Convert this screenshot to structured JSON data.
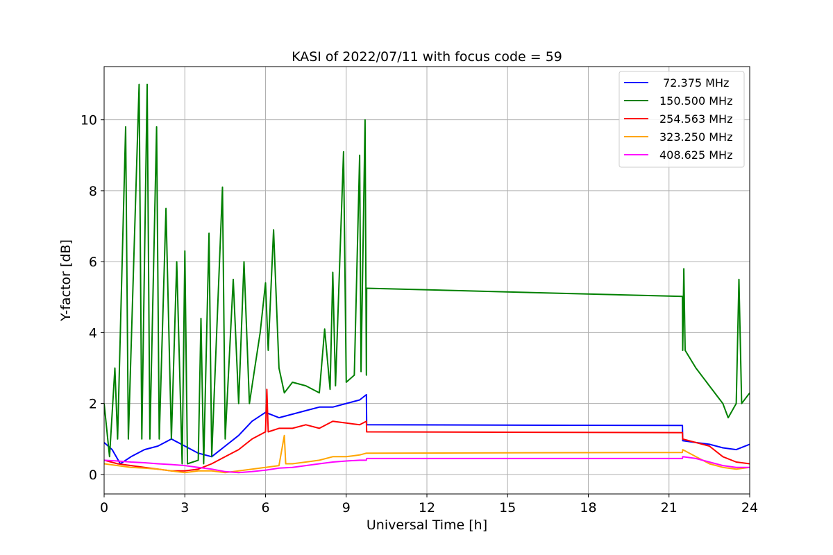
{
  "chart_data": {
    "type": "line",
    "title": "KASI of 2022/07/11 with focus code = 59",
    "xlabel": "Universal Time [h]",
    "ylabel": "Y-factor [dB]",
    "xlim": [
      0,
      24
    ],
    "ylim": [
      -0.55,
      11.5
    ],
    "xticks": [
      0,
      3,
      6,
      9,
      12,
      15,
      18,
      21,
      24
    ],
    "yticks": [
      0,
      2,
      4,
      6,
      8,
      10
    ],
    "grid": true,
    "legend_position": "top-right",
    "series": [
      {
        "name": " 72.375 MHz",
        "color": "#0000ff",
        "points": [
          [
            0,
            0.9
          ],
          [
            0.3,
            0.7
          ],
          [
            0.6,
            0.3
          ],
          [
            1.0,
            0.5
          ],
          [
            1.5,
            0.7
          ],
          [
            2.0,
            0.8
          ],
          [
            2.5,
            1.0
          ],
          [
            3.0,
            0.8
          ],
          [
            3.5,
            0.6
          ],
          [
            4.0,
            0.5
          ],
          [
            4.5,
            0.8
          ],
          [
            5.0,
            1.1
          ],
          [
            5.5,
            1.5
          ],
          [
            6.0,
            1.75
          ],
          [
            6.5,
            1.6
          ],
          [
            7.0,
            1.7
          ],
          [
            7.5,
            1.8
          ],
          [
            8.0,
            1.9
          ],
          [
            8.5,
            1.9
          ],
          [
            9.0,
            2.0
          ],
          [
            9.5,
            2.1
          ],
          [
            9.75,
            2.25
          ],
          [
            9.76,
            1.4
          ],
          [
            21.5,
            1.38
          ],
          [
            21.51,
            0.95
          ],
          [
            22.0,
            0.9
          ],
          [
            22.5,
            0.85
          ],
          [
            23.0,
            0.75
          ],
          [
            23.5,
            0.7
          ],
          [
            24,
            0.85
          ]
        ]
      },
      {
        "name": "150.500 MHz",
        "color": "#008000",
        "points": [
          [
            0,
            2.0
          ],
          [
            0.2,
            0.5
          ],
          [
            0.4,
            3.0
          ],
          [
            0.5,
            1.0
          ],
          [
            0.8,
            9.8
          ],
          [
            0.9,
            1.0
          ],
          [
            1.3,
            11.0
          ],
          [
            1.4,
            1.0
          ],
          [
            1.6,
            11.0
          ],
          [
            1.7,
            1.0
          ],
          [
            1.95,
            9.8
          ],
          [
            2.05,
            1.0
          ],
          [
            2.3,
            7.5
          ],
          [
            2.5,
            1.0
          ],
          [
            2.7,
            6.0
          ],
          [
            2.9,
            0.3
          ],
          [
            3.0,
            6.3
          ],
          [
            3.1,
            0.3
          ],
          [
            3.5,
            0.4
          ],
          [
            3.6,
            4.4
          ],
          [
            3.7,
            0.3
          ],
          [
            3.9,
            6.8
          ],
          [
            4.0,
            0.5
          ],
          [
            4.4,
            8.1
          ],
          [
            4.5,
            1.0
          ],
          [
            4.8,
            5.5
          ],
          [
            5.0,
            2.0
          ],
          [
            5.2,
            6.0
          ],
          [
            5.4,
            2.0
          ],
          [
            5.6,
            3.0
          ],
          [
            5.8,
            4.0
          ],
          [
            6.0,
            5.4
          ],
          [
            6.1,
            3.5
          ],
          [
            6.3,
            6.9
          ],
          [
            6.5,
            3.0
          ],
          [
            6.7,
            2.3
          ],
          [
            7.0,
            2.6
          ],
          [
            7.5,
            2.5
          ],
          [
            8.0,
            2.3
          ],
          [
            8.2,
            4.1
          ],
          [
            8.4,
            2.4
          ],
          [
            8.5,
            5.7
          ],
          [
            8.6,
            2.5
          ],
          [
            8.9,
            9.1
          ],
          [
            9.0,
            2.6
          ],
          [
            9.3,
            2.8
          ],
          [
            9.5,
            9.0
          ],
          [
            9.55,
            2.9
          ],
          [
            9.7,
            10.0
          ],
          [
            9.75,
            2.8
          ],
          [
            9.76,
            5.25
          ],
          [
            21.5,
            5.02
          ],
          [
            21.51,
            3.5
          ],
          [
            21.55,
            5.8
          ],
          [
            21.6,
            3.5
          ],
          [
            22.0,
            3.0
          ],
          [
            22.5,
            2.5
          ],
          [
            23.0,
            2.0
          ],
          [
            23.2,
            1.6
          ],
          [
            23.5,
            2.0
          ],
          [
            23.6,
            5.5
          ],
          [
            23.7,
            2.0
          ],
          [
            24,
            2.3
          ]
        ]
      },
      {
        "name": "254.563 MHz",
        "color": "#ff0000",
        "points": [
          [
            0,
            0.4
          ],
          [
            0.5,
            0.3
          ],
          [
            1.0,
            0.25
          ],
          [
            1.5,
            0.2
          ],
          [
            2.0,
            0.15
          ],
          [
            2.5,
            0.1
          ],
          [
            3.0,
            0.1
          ],
          [
            3.5,
            0.15
          ],
          [
            4.0,
            0.3
          ],
          [
            4.5,
            0.5
          ],
          [
            5.0,
            0.7
          ],
          [
            5.5,
            1.0
          ],
          [
            6.0,
            1.2
          ],
          [
            6.05,
            2.4
          ],
          [
            6.1,
            1.2
          ],
          [
            6.5,
            1.3
          ],
          [
            7.0,
            1.3
          ],
          [
            7.5,
            1.4
          ],
          [
            8.0,
            1.3
          ],
          [
            8.5,
            1.5
          ],
          [
            9.0,
            1.45
          ],
          [
            9.5,
            1.4
          ],
          [
            9.75,
            1.5
          ],
          [
            9.76,
            1.2
          ],
          [
            21.5,
            1.18
          ],
          [
            21.51,
            1.0
          ],
          [
            22.0,
            0.9
          ],
          [
            22.5,
            0.8
          ],
          [
            23.0,
            0.5
          ],
          [
            23.5,
            0.35
          ],
          [
            24,
            0.3
          ]
        ]
      },
      {
        "name": "323.250 MHz",
        "color": "#ffa500",
        "points": [
          [
            0,
            0.3
          ],
          [
            0.5,
            0.25
          ],
          [
            1.0,
            0.2
          ],
          [
            1.5,
            0.18
          ],
          [
            2.0,
            0.15
          ],
          [
            2.5,
            0.1
          ],
          [
            3.0,
            0.05
          ],
          [
            3.5,
            0.1
          ],
          [
            4.0,
            0.1
          ],
          [
            4.5,
            0.05
          ],
          [
            5.0,
            0.1
          ],
          [
            5.5,
            0.15
          ],
          [
            6.0,
            0.2
          ],
          [
            6.5,
            0.25
          ],
          [
            6.7,
            1.1
          ],
          [
            6.75,
            0.3
          ],
          [
            7.0,
            0.3
          ],
          [
            7.5,
            0.35
          ],
          [
            8.0,
            0.4
          ],
          [
            8.5,
            0.5
          ],
          [
            9.0,
            0.5
          ],
          [
            9.5,
            0.55
          ],
          [
            9.75,
            0.6
          ],
          [
            9.76,
            0.6
          ],
          [
            21.5,
            0.62
          ],
          [
            21.51,
            0.7
          ],
          [
            22.0,
            0.5
          ],
          [
            22.5,
            0.3
          ],
          [
            23.0,
            0.2
          ],
          [
            23.5,
            0.15
          ],
          [
            24,
            0.2
          ]
        ]
      },
      {
        "name": "408.625 MHz",
        "color": "#ff00ff",
        "points": [
          [
            0,
            0.4
          ],
          [
            0.5,
            0.38
          ],
          [
            1.0,
            0.35
          ],
          [
            1.5,
            0.33
          ],
          [
            2.0,
            0.3
          ],
          [
            2.5,
            0.28
          ],
          [
            3.0,
            0.25
          ],
          [
            3.5,
            0.2
          ],
          [
            4.0,
            0.15
          ],
          [
            4.5,
            0.08
          ],
          [
            5.0,
            0.05
          ],
          [
            5.5,
            0.08
          ],
          [
            6.0,
            0.12
          ],
          [
            6.5,
            0.18
          ],
          [
            7.0,
            0.2
          ],
          [
            7.5,
            0.25
          ],
          [
            8.0,
            0.3
          ],
          [
            8.5,
            0.35
          ],
          [
            9.0,
            0.38
          ],
          [
            9.5,
            0.4
          ],
          [
            9.75,
            0.4
          ],
          [
            9.76,
            0.45
          ],
          [
            21.5,
            0.45
          ],
          [
            21.51,
            0.5
          ],
          [
            22.0,
            0.45
          ],
          [
            22.5,
            0.35
          ],
          [
            23.0,
            0.25
          ],
          [
            23.5,
            0.2
          ],
          [
            24,
            0.2
          ]
        ]
      }
    ]
  }
}
